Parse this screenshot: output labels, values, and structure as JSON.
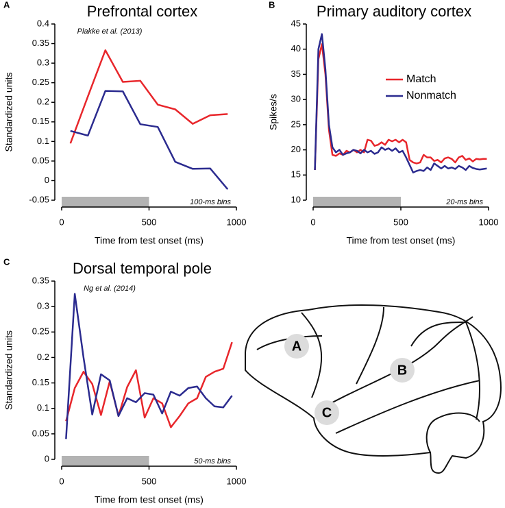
{
  "chart_data": [
    {
      "type": "line",
      "panel_label": "A",
      "title": "Prefrontal cortex",
      "citation": "Plakke et al. (2013)",
      "bin_label": "100-ms bins",
      "x_label": "Time from test onset (ms)",
      "y_label": "Standardized units",
      "x": [
        50,
        150,
        250,
        350,
        450,
        550,
        650,
        750,
        850,
        950
      ],
      "series": [
        {
          "color": "#e8262b",
          "values": [
            0.095,
            0.215,
            0.333,
            0.252,
            0.255,
            0.194,
            0.182,
            0.145,
            0.167,
            0.17
          ]
        },
        {
          "color": "#2b2b8f",
          "values": [
            0.127,
            0.115,
            0.229,
            0.228,
            0.144,
            0.137,
            0.048,
            0.03,
            0.031,
            -0.022
          ]
        }
      ],
      "xlim": [
        0,
        1000
      ],
      "xticks": [
        0,
        500,
        1000
      ],
      "ylim": [
        -0.05,
        0.4
      ],
      "yticks": [
        -0.05,
        0,
        0.05,
        0.1,
        0.15,
        0.2,
        0.25,
        0.3,
        0.35,
        0.4
      ],
      "shaded_interval": [
        0,
        500
      ],
      "shade_color": "#b3b3b3"
    },
    {
      "type": "line",
      "panel_label": "B",
      "title": "Primary auditory cortex",
      "bin_label": "20-ms bins",
      "x_label": "Time from test onset (ms)",
      "y_label": "Spikes/s",
      "x": [
        10,
        30,
        50,
        70,
        90,
        110,
        130,
        150,
        170,
        190,
        210,
        230,
        250,
        270,
        290,
        310,
        330,
        350,
        370,
        390,
        410,
        430,
        450,
        470,
        490,
        510,
        530,
        550,
        570,
        590,
        610,
        630,
        650,
        670,
        690,
        710,
        730,
        750,
        770,
        790,
        810,
        830,
        850,
        870,
        890,
        910,
        930,
        950,
        970,
        990
      ],
      "series": [
        {
          "name": "Match",
          "color": "#e8262b",
          "values": [
            16,
            38,
            41,
            35,
            24,
            19,
            18.8,
            19.3,
            19,
            19.8,
            19.5,
            20,
            19.5,
            20,
            19.5,
            22,
            21.8,
            20.8,
            21,
            21.5,
            21,
            22,
            21.7,
            22,
            21.5,
            22,
            21.5,
            18,
            17.5,
            17.3,
            17.5,
            19,
            18.5,
            18.5,
            17.8,
            18,
            17.5,
            18.3,
            18.5,
            18.2,
            17.5,
            18.5,
            18.8,
            18,
            18.3,
            17.7,
            18.2,
            18.1,
            18.2,
            18.2
          ]
        },
        {
          "name": "Nonmatch",
          "color": "#2b2b8f",
          "values": [
            16,
            40,
            43,
            36,
            25,
            20.5,
            19.5,
            20,
            19,
            19.3,
            19.5,
            20,
            19.8,
            19.3,
            20,
            19.5,
            19.8,
            19.2,
            19.5,
            20.5,
            20,
            20.3,
            19.8,
            20.3,
            19.5,
            19.8,
            18.5,
            17,
            15.5,
            15.8,
            16,
            15.8,
            16.5,
            16,
            17.3,
            16.8,
            16.3,
            16.8,
            16.3,
            16.5,
            16.2,
            16.8,
            16.5,
            16,
            16.8,
            16.4,
            16.2,
            16.1,
            16.2,
            16.3
          ]
        }
      ],
      "xlim": [
        0,
        1000
      ],
      "xticks": [
        0,
        500,
        1000
      ],
      "ylim": [
        10,
        45
      ],
      "yticks": [
        10,
        15,
        20,
        25,
        30,
        35,
        40,
        45
      ],
      "legend": "upper right",
      "shaded_interval": [
        0,
        500
      ],
      "shade_color": "#b3b3b3"
    },
    {
      "type": "line",
      "panel_label": "C",
      "title": "Dorsal temporal pole",
      "citation": "Ng et al. (2014)",
      "bin_label": "50-ms bins",
      "x_label": "Time from test onset (ms)",
      "y_label": "Standardized units",
      "x": [
        25,
        75,
        125,
        175,
        225,
        275,
        325,
        375,
        425,
        475,
        525,
        575,
        625,
        675,
        725,
        775,
        825,
        875,
        925,
        975
      ],
      "series": [
        {
          "color": "#e8262b",
          "values": [
            0.075,
            0.14,
            0.172,
            0.148,
            0.087,
            0.153,
            0.085,
            0.142,
            0.175,
            0.082,
            0.12,
            0.11,
            0.063,
            0.085,
            0.11,
            0.12,
            0.162,
            0.172,
            0.178,
            0.23
          ]
        },
        {
          "color": "#2b2b8f",
          "values": [
            0.04,
            0.325,
            0.2,
            0.088,
            0.167,
            0.155,
            0.085,
            0.12,
            0.112,
            0.13,
            0.127,
            0.09,
            0.133,
            0.125,
            0.14,
            0.143,
            0.12,
            0.104,
            0.102,
            0.125
          ]
        }
      ],
      "xlim": [
        0,
        1000
      ],
      "xticks": [
        0,
        500,
        1000
      ],
      "ylim": [
        0,
        0.35
      ],
      "yticks": [
        0,
        0.05,
        0.1,
        0.15,
        0.2,
        0.25,
        0.3,
        0.35
      ],
      "shaded_interval": [
        0,
        500
      ],
      "shade_color": "#b3b3b3"
    }
  ],
  "diagram": {
    "labels": [
      "A",
      "B",
      "C"
    ]
  }
}
